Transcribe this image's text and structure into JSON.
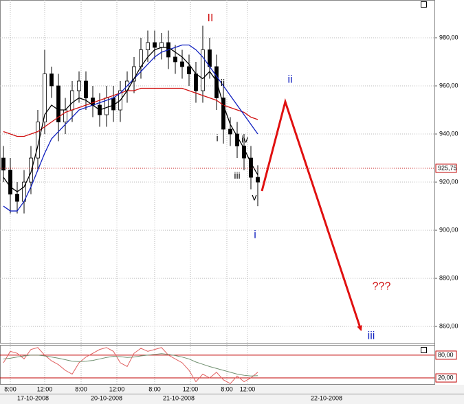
{
  "chart_data": [
    {
      "type": "candlestick",
      "x": [
        0.5,
        1.5,
        2.5,
        3.5,
        4.5,
        5.5,
        6.5,
        7.5,
        8.5,
        9.5,
        10.5,
        11.5,
        12.5,
        13.5,
        14.5,
        15.5,
        16.5,
        17.5,
        18.5,
        19.5,
        20.5,
        21.5,
        22.5,
        23.5,
        24.5,
        25.5,
        26.5,
        27.5,
        28.5,
        29.5,
        30.5,
        31.5,
        32.5,
        33.5,
        34.5,
        35.5,
        36.5,
        37.5
      ],
      "open": [
        930,
        925,
        915,
        912,
        920,
        930,
        945,
        965,
        960,
        945,
        950,
        958,
        962,
        955,
        952,
        948,
        955,
        950,
        958,
        962,
        968,
        975,
        978,
        976,
        978,
        972,
        970,
        968,
        965,
        958,
        975,
        968,
        955,
        942,
        940,
        935,
        930,
        922
      ],
      "high": [
        935,
        930,
        920,
        925,
        935,
        950,
        975,
        968,
        965,
        955,
        962,
        966,
        966,
        960,
        957,
        960,
        960,
        962,
        966,
        972,
        980,
        983,
        983,
        982,
        983,
        977,
        975,
        973,
        970,
        985,
        980,
        973,
        960,
        947,
        945,
        940,
        935,
        927
      ],
      "low": [
        920,
        907,
        907,
        907,
        915,
        925,
        940,
        955,
        937,
        940,
        945,
        953,
        950,
        947,
        943,
        943,
        945,
        945,
        953,
        957,
        963,
        970,
        971,
        971,
        967,
        965,
        963,
        960,
        953,
        953,
        963,
        950,
        936,
        935,
        930,
        925,
        917,
        910
      ],
      "close": [
        925,
        915,
        912,
        920,
        930,
        945,
        965,
        960,
        945,
        950,
        958,
        962,
        955,
        952,
        948,
        955,
        950,
        958,
        962,
        968,
        975,
        978,
        976,
        978,
        972,
        970,
        968,
        965,
        958,
        975,
        968,
        955,
        942,
        940,
        935,
        930,
        922,
        920
      ],
      "up_color": "#ffffff",
      "down_color": "#000000",
      "lines": [
        {
          "color": "#d01010",
          "values": [
            941,
            940,
            939,
            939,
            940,
            941,
            943,
            945,
            947,
            949,
            950,
            951,
            952,
            953,
            954,
            955,
            956,
            957,
            958,
            958,
            959,
            959,
            959,
            959,
            959,
            959,
            959,
            958,
            957,
            956,
            955,
            954,
            952,
            951,
            950,
            949,
            947,
            946
          ]
        },
        {
          "color": "#1020c0",
          "values": [
            910,
            908,
            908,
            912,
            918,
            925,
            932,
            938,
            941,
            944,
            947,
            950,
            951,
            952,
            953,
            954,
            955,
            957,
            960,
            963,
            966,
            969,
            972,
            974,
            975,
            976,
            977,
            977,
            975,
            972,
            968,
            964,
            960,
            956,
            952,
            948,
            944,
            940
          ]
        },
        {
          "color": "#000000",
          "values": [
            922,
            918,
            916,
            918,
            924,
            935,
            948,
            952,
            950,
            950,
            953,
            955,
            954,
            952,
            950,
            951,
            952,
            954,
            958,
            963,
            968,
            972,
            975,
            976,
            976,
            974,
            972,
            969,
            965,
            963,
            966,
            962,
            952,
            944,
            939,
            934,
            928,
            923
          ]
        }
      ],
      "xlim": [
        0,
        63.2
      ],
      "ylim": [
        852.9,
        995.7
      ],
      "yticks": [
        {
          "value": 860,
          "label": "860,00"
        },
        {
          "value": 880,
          "label": "880,00"
        },
        {
          "value": 900,
          "label": "900,00"
        },
        {
          "value": 920,
          "label": "920,00"
        },
        {
          "value": 940,
          "label": "940,00"
        },
        {
          "value": 960,
          "label": "960,00"
        },
        {
          "value": 980,
          "label": "980,00"
        }
      ],
      "xticks": [
        {
          "value": 1.5,
          "label": "8:00"
        },
        {
          "value": 6.5,
          "label": "12:00"
        },
        {
          "value": 11.8,
          "label": "8:00"
        },
        {
          "value": 17,
          "label": "12:00"
        },
        {
          "value": 22.5,
          "label": "8:00"
        },
        {
          "value": 27.7,
          "label": "12:00"
        },
        {
          "value": 33,
          "label": "8:00"
        },
        {
          "value": 36,
          "label": "12:00"
        }
      ],
      "date_ticks": [
        {
          "value": 4.8,
          "label": "17-10-2008"
        },
        {
          "value": 15.5,
          "label": "20-10-2008"
        },
        {
          "value": 26,
          "label": "21-10-2008"
        },
        {
          "value": 47.5,
          "label": "22-10-2008"
        }
      ],
      "last_price": {
        "value": 925.75,
        "label": "925,75"
      },
      "grid": true,
      "annotations": [
        {
          "text": "II",
          "x": 30.6,
          "y": 988,
          "color": "#d01010"
        },
        {
          "text": "ii",
          "x": 32.4,
          "y": 961,
          "color": "#000000"
        },
        {
          "text": "i",
          "x": 31.6,
          "y": 938,
          "color": "#000000"
        },
        {
          "text": "iv",
          "x": 35.6,
          "y": 937.5,
          "color": "#000000"
        },
        {
          "text": "iii",
          "x": 34.5,
          "y": 922.5,
          "color": "#000000"
        },
        {
          "text": "v",
          "x": 37,
          "y": 913.5,
          "color": "#000000"
        },
        {
          "text": "i",
          "x": 37.1,
          "y": 898,
          "color": "#1020c0"
        },
        {
          "text": "ii",
          "x": 42.2,
          "y": 962.5,
          "color": "#1020c0"
        },
        {
          "text": "iii",
          "x": 54,
          "y": 856,
          "color": "#1020c0"
        },
        {
          "text": "???",
          "x": 55.5,
          "y": 876.5,
          "color": "#d01010"
        }
      ],
      "projection": {
        "color": "#e01010",
        "x": [
          38.1,
          41.5,
          52.5
        ],
        "y": [
          916.3,
          953.4,
          858.6
        ]
      }
    },
    {
      "type": "line",
      "x": [
        0.5,
        1.5,
        2.5,
        3.5,
        4.5,
        5.5,
        6.5,
        7.5,
        8.5,
        9.5,
        10.5,
        11.5,
        12.5,
        13.5,
        14.5,
        15.5,
        16.5,
        17.5,
        18.5,
        19.5,
        20.5,
        21.5,
        22.5,
        23.5,
        24.5,
        25.5,
        26.5,
        27.5,
        28.5,
        29.5,
        30.5,
        31.5,
        32.5,
        33.5,
        34.5,
        35.5,
        36.5,
        37.5
      ],
      "xlim": [
        0,
        63.2
      ],
      "ylim": [
        2,
        107
      ],
      "yticks": [
        {
          "value": 20,
          "label": "20,00"
        },
        {
          "value": 80,
          "label": "80,00"
        }
      ],
      "series": [
        {
          "color": "#e06060",
          "values": [
            60,
            90,
            85,
            70,
            95,
            100,
            80,
            65,
            55,
            40,
            30,
            60,
            75,
            85,
            95,
            100,
            90,
            60,
            50,
            85,
            98,
            90,
            95,
            100,
            80,
            70,
            60,
            40,
            10,
            30,
            20,
            35,
            15,
            5,
            25,
            10,
            20,
            35
          ]
        },
        {
          "color": "#709070",
          "values": [
            70,
            72,
            75,
            78,
            80,
            80,
            78,
            75,
            72,
            68,
            64,
            63,
            64,
            66,
            70,
            74,
            77,
            76,
            74,
            75,
            78,
            80,
            82,
            84,
            82,
            79,
            75,
            70,
            62,
            56,
            50,
            45,
            40,
            35,
            30,
            27,
            25,
            26
          ]
        }
      ]
    }
  ]
}
